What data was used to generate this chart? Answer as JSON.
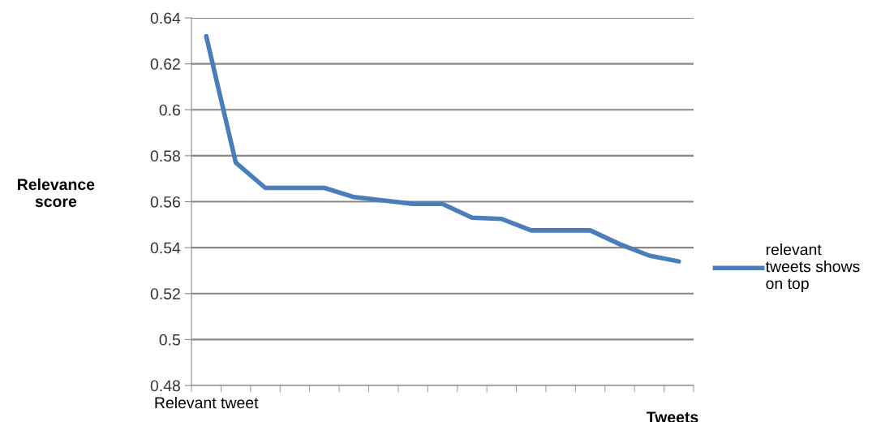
{
  "chart_data": {
    "type": "line",
    "xlabel": "Tweets",
    "ylabel": "Relevance\nscore",
    "categories": [
      "Relevant tweet",
      null,
      null,
      null,
      null,
      null,
      null,
      null,
      null,
      null,
      null,
      null,
      null,
      null,
      null,
      null,
      null
    ],
    "series": [
      {
        "name": "relevant\ntweets shows\non top",
        "color": "#4a7ebb",
        "values": [
          0.632,
          0.577,
          0.566,
          0.566,
          0.566,
          0.562,
          0.5605,
          0.559,
          0.559,
          0.553,
          0.5525,
          0.5475,
          0.5475,
          0.5475,
          0.5415,
          0.5365,
          0.534
        ]
      }
    ],
    "ylim": [
      0.48,
      0.64
    ],
    "yticks": [
      0.48,
      0.5,
      0.52,
      0.54,
      0.56,
      0.58,
      0.6,
      0.62,
      0.64
    ],
    "grid": "y",
    "legend": "right",
    "marker": "none",
    "line_style": "solid"
  }
}
